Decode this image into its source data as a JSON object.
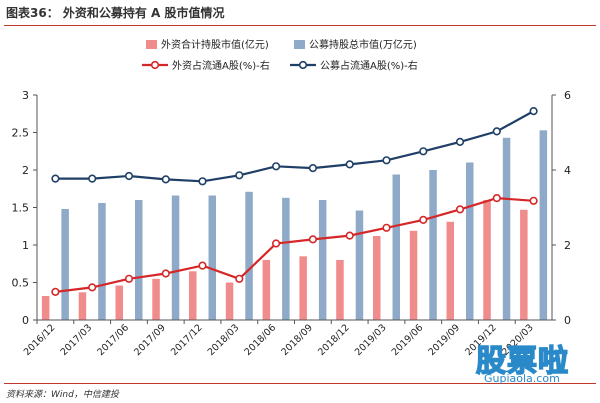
{
  "header": {
    "title": "图表36：  外资和公募持有 A 股市值情况"
  },
  "footer": {
    "source": "资料来源：Wind，中信建投"
  },
  "watermark": {
    "main": "股票啦",
    "sub": "Gupiaola.com"
  },
  "colors": {
    "foreign_bar": "#f08c8c",
    "fund_bar": "#8eaac8",
    "foreign_line": "#d62728",
    "fund_line": "#1f3f66",
    "axis": "#555555"
  },
  "chart_data": {
    "type": "bar",
    "categories": [
      "2016/12",
      "2017/03",
      "2017/06",
      "2017/09",
      "2017/12",
      "2018/03",
      "2018/06",
      "2018/09",
      "2018/12",
      "2019/03",
      "2019/06",
      "2019/09",
      "2019/12",
      "2020/03"
    ],
    "series": [
      {
        "name": "外资合计持股市值(亿元)",
        "kind": "bar",
        "axis": "left",
        "values": [
          0.32,
          0.37,
          0.46,
          0.55,
          0.65,
          0.5,
          0.8,
          0.85,
          0.8,
          1.12,
          1.19,
          1.31,
          1.6,
          1.47
        ]
      },
      {
        "name": "公募持股总市值(万亿元)",
        "kind": "bar",
        "axis": "left",
        "values": [
          1.48,
          1.56,
          1.6,
          1.66,
          1.66,
          1.71,
          1.63,
          1.6,
          1.46,
          1.94,
          2.0,
          2.1,
          2.43,
          2.53
        ]
      },
      {
        "name": "外资占流通A股(%)-右",
        "kind": "line",
        "axis": "right",
        "values": [
          0.75,
          0.87,
          1.1,
          1.24,
          1.45,
          1.1,
          2.04,
          2.15,
          2.25,
          2.46,
          2.67,
          2.95,
          3.25,
          3.18
        ]
      },
      {
        "name": "公募占流通A股(%)-右",
        "kind": "line",
        "axis": "right",
        "values": [
          3.77,
          3.77,
          3.84,
          3.75,
          3.7,
          3.86,
          4.1,
          4.05,
          4.15,
          4.26,
          4.5,
          4.75,
          5.03,
          5.57
        ]
      }
    ],
    "ylim": [
      0,
      3
    ],
    "yticks": [
      "0",
      "0.5",
      "1",
      "1.5",
      "2",
      "2.5",
      "3"
    ],
    "y2lim": [
      0,
      6
    ],
    "y2ticks": [
      "0",
      "2",
      "4",
      "6"
    ],
    "legend_position": "top",
    "grid": false
  }
}
